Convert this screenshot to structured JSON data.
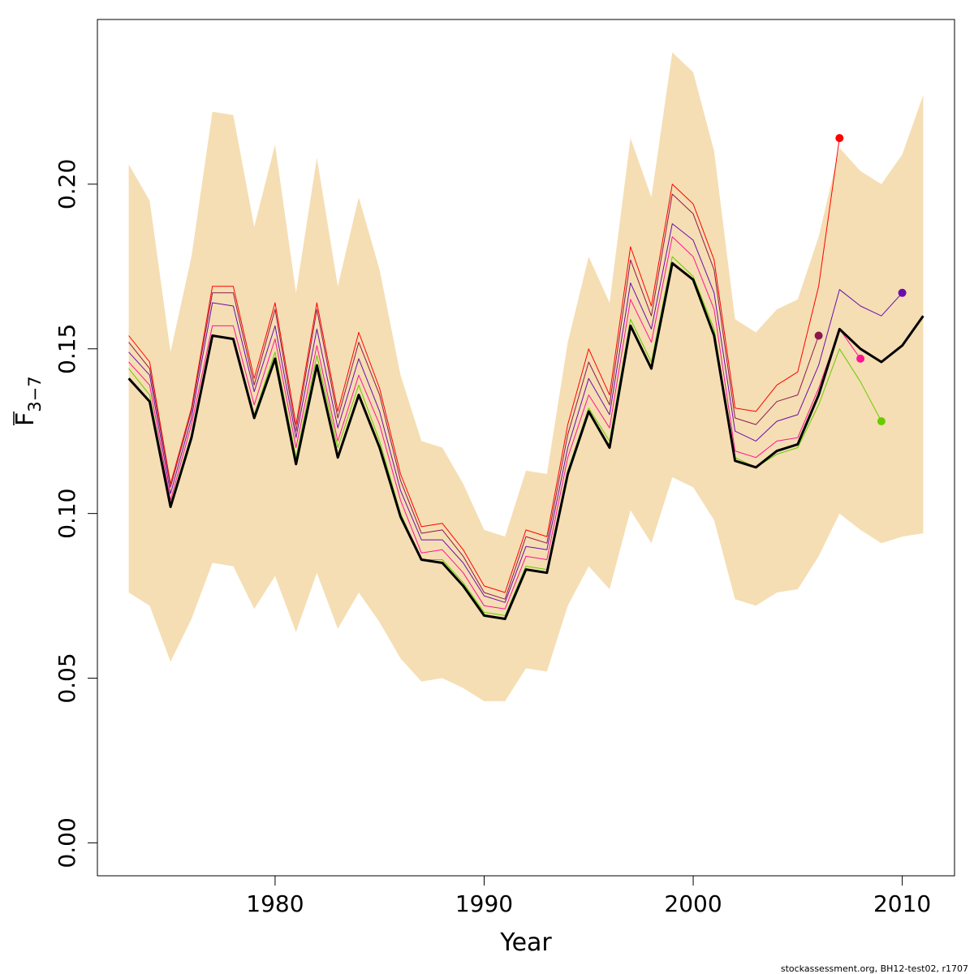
{
  "chart_data": {
    "type": "line",
    "title": "",
    "xlabel": "Year",
    "ylabel_main": "F",
    "ylabel_sub": "3−7",
    "xlim": [
      1971.5,
      2012.5
    ],
    "ylim": [
      -0.01,
      0.25
    ],
    "x_ticks": [
      1980,
      1990,
      2000,
      2010
    ],
    "x_tick_labels": [
      "1980",
      "1990",
      "2000",
      "2010"
    ],
    "y_ticks": [
      0.0,
      0.05,
      0.1,
      0.15,
      0.2
    ],
    "y_tick_labels": [
      "0.00",
      "0.05",
      "0.10",
      "0.15",
      "0.20"
    ],
    "grid": false,
    "footer_text": "stockassessment.org, BH12-test02, r1707",
    "colors": {
      "band": "#f5deb3",
      "main": "#000000"
    },
    "band": {
      "name": "confidence interval",
      "x": [
        1973,
        1974,
        1975,
        1976,
        1977,
        1978,
        1979,
        1980,
        1981,
        1982,
        1983,
        1984,
        1985,
        1986,
        1987,
        1988,
        1989,
        1990,
        1991,
        1992,
        1993,
        1994,
        1995,
        1996,
        1997,
        1998,
        1999,
        2000,
        2001,
        2002,
        2003,
        2004,
        2005,
        2006,
        2007,
        2008,
        2009,
        2010,
        2011
      ],
      "upper": [
        0.206,
        0.195,
        0.149,
        0.178,
        0.222,
        0.221,
        0.187,
        0.212,
        0.167,
        0.208,
        0.169,
        0.196,
        0.174,
        0.142,
        0.122,
        0.12,
        0.109,
        0.095,
        0.093,
        0.113,
        0.112,
        0.152,
        0.178,
        0.164,
        0.214,
        0.196,
        0.24,
        0.234,
        0.21,
        0.159,
        0.155,
        0.162,
        0.165,
        0.184,
        0.211,
        0.204,
        0.2,
        0.209,
        0.227
      ],
      "lower": [
        0.076,
        0.072,
        0.055,
        0.068,
        0.085,
        0.084,
        0.071,
        0.081,
        0.064,
        0.082,
        0.065,
        0.076,
        0.067,
        0.056,
        0.049,
        0.05,
        0.047,
        0.043,
        0.043,
        0.053,
        0.052,
        0.072,
        0.084,
        0.077,
        0.101,
        0.091,
        0.111,
        0.108,
        0.098,
        0.074,
        0.072,
        0.076,
        0.077,
        0.087,
        0.1,
        0.095,
        0.091,
        0.093,
        0.094
      ]
    },
    "series": [
      {
        "color": "#ff0000",
        "width": 1,
        "x": [
          1973,
          1974,
          1975,
          1976,
          1977,
          1978,
          1979,
          1980,
          1981,
          1982,
          1983,
          1984,
          1985,
          1986,
          1987,
          1988,
          1989,
          1990,
          1991,
          1992,
          1993,
          1994,
          1995,
          1996,
          1997,
          1998,
          1999,
          2000,
          2001,
          2002,
          2003,
          2004,
          2005,
          2006,
          2007
        ],
        "y": [
          0.154,
          0.146,
          0.109,
          0.132,
          0.169,
          0.169,
          0.141,
          0.164,
          0.127,
          0.164,
          0.131,
          0.155,
          0.138,
          0.112,
          0.096,
          0.097,
          0.089,
          0.078,
          0.076,
          0.095,
          0.093,
          0.127,
          0.15,
          0.136,
          0.181,
          0.163,
          0.2,
          0.194,
          0.177,
          0.132,
          0.131,
          0.139,
          0.143,
          0.169,
          0.214
        ]
      },
      {
        "color": "#8b1a4b",
        "width": 1,
        "x": [
          1973,
          1974,
          1975,
          1976,
          1977,
          1978,
          1979,
          1980,
          1981,
          1982,
          1983,
          1984,
          1985,
          1986,
          1987,
          1988,
          1989,
          1990,
          1991,
          1992,
          1993,
          1994,
          1995,
          1996,
          1997,
          1998,
          1999,
          2000,
          2001,
          2002,
          2003,
          2004,
          2005,
          2006
        ],
        "y": [
          0.152,
          0.144,
          0.108,
          0.131,
          0.167,
          0.167,
          0.139,
          0.162,
          0.125,
          0.162,
          0.129,
          0.152,
          0.136,
          0.11,
          0.094,
          0.095,
          0.087,
          0.076,
          0.074,
          0.093,
          0.091,
          0.124,
          0.146,
          0.133,
          0.177,
          0.16,
          0.197,
          0.191,
          0.174,
          0.129,
          0.127,
          0.134,
          0.136,
          0.154
        ]
      },
      {
        "color": "#6a0dad",
        "width": 1,
        "x": [
          1973,
          1974,
          1975,
          1976,
          1977,
          1978,
          1979,
          1980,
          1981,
          1982,
          1983,
          1984,
          1985,
          1986,
          1987,
          1988,
          1989,
          1990,
          1991,
          1992,
          1993,
          1994,
          1995,
          1996,
          1997,
          1998,
          1999,
          2000,
          2001,
          2002,
          2003,
          2004,
          2005,
          2006,
          2007,
          2008,
          2009,
          2010
        ],
        "y": [
          0.149,
          0.142,
          0.106,
          0.129,
          0.164,
          0.163,
          0.137,
          0.157,
          0.123,
          0.156,
          0.126,
          0.147,
          0.131,
          0.107,
          0.092,
          0.092,
          0.085,
          0.075,
          0.073,
          0.09,
          0.089,
          0.12,
          0.141,
          0.13,
          0.17,
          0.156,
          0.188,
          0.183,
          0.167,
          0.125,
          0.122,
          0.128,
          0.13,
          0.145,
          0.168,
          0.163,
          0.16,
          0.167
        ]
      },
      {
        "color": "#ff1493",
        "width": 1,
        "x": [
          1973,
          1974,
          1975,
          1976,
          1977,
          1978,
          1979,
          1980,
          1981,
          1982,
          1983,
          1984,
          1985,
          1986,
          1987,
          1988,
          1989,
          1990,
          1991,
          1992,
          1993,
          1994,
          1995,
          1996,
          1997,
          1998,
          1999,
          2000,
          2001,
          2002,
          2003,
          2004,
          2005,
          2006,
          2007,
          2008
        ],
        "y": [
          0.146,
          0.139,
          0.104,
          0.127,
          0.157,
          0.157,
          0.133,
          0.153,
          0.12,
          0.151,
          0.122,
          0.142,
          0.127,
          0.104,
          0.088,
          0.089,
          0.082,
          0.072,
          0.071,
          0.087,
          0.086,
          0.117,
          0.136,
          0.126,
          0.165,
          0.152,
          0.184,
          0.178,
          0.162,
          0.119,
          0.117,
          0.122,
          0.123,
          0.138,
          0.156,
          0.147
        ]
      },
      {
        "color": "#66cc00",
        "width": 1,
        "x": [
          1973,
          1974,
          1975,
          1976,
          1977,
          1978,
          1979,
          1980,
          1981,
          1982,
          1983,
          1984,
          1985,
          1986,
          1987,
          1988,
          1989,
          1990,
          1991,
          1992,
          1993,
          1994,
          1995,
          1996,
          1997,
          1998,
          1999,
          2000,
          2001,
          2002,
          2003,
          2004,
          2005,
          2006,
          2007,
          2008,
          2009
        ],
        "y": [
          0.144,
          0.136,
          0.103,
          0.124,
          0.154,
          0.153,
          0.13,
          0.149,
          0.117,
          0.148,
          0.12,
          0.139,
          0.122,
          0.1,
          0.086,
          0.086,
          0.079,
          0.07,
          0.069,
          0.084,
          0.083,
          0.113,
          0.132,
          0.122,
          0.159,
          0.146,
          0.178,
          0.172,
          0.156,
          0.117,
          0.114,
          0.118,
          0.12,
          0.133,
          0.15,
          0.14,
          0.128
        ]
      },
      {
        "color": "#000000",
        "width": 3,
        "x": [
          1973,
          1974,
          1975,
          1976,
          1977,
          1978,
          1979,
          1980,
          1981,
          1982,
          1983,
          1984,
          1985,
          1986,
          1987,
          1988,
          1989,
          1990,
          1991,
          1992,
          1993,
          1994,
          1995,
          1996,
          1997,
          1998,
          1999,
          2000,
          2001,
          2002,
          2003,
          2004,
          2005,
          2006,
          2007,
          2008,
          2009,
          2010,
          2011
        ],
        "y": [
          0.141,
          0.134,
          0.102,
          0.123,
          0.154,
          0.153,
          0.129,
          0.147,
          0.115,
          0.145,
          0.117,
          0.136,
          0.12,
          0.099,
          0.086,
          0.085,
          0.078,
          0.069,
          0.068,
          0.083,
          0.082,
          0.112,
          0.131,
          0.12,
          0.157,
          0.144,
          0.176,
          0.171,
          0.154,
          0.116,
          0.114,
          0.119,
          0.121,
          0.136,
          0.156,
          0.15,
          0.146,
          0.151,
          0.16
        ]
      }
    ],
    "endpoints": [
      {
        "x": 2007,
        "y": 0.214,
        "color": "#ff0000"
      },
      {
        "x": 2006,
        "y": 0.154,
        "color": "#8b1a4b"
      },
      {
        "x": 2010,
        "y": 0.167,
        "color": "#6a0dad"
      },
      {
        "x": 2008,
        "y": 0.147,
        "color": "#ff1493"
      },
      {
        "x": 2009,
        "y": 0.128,
        "color": "#66cc00"
      }
    ]
  }
}
